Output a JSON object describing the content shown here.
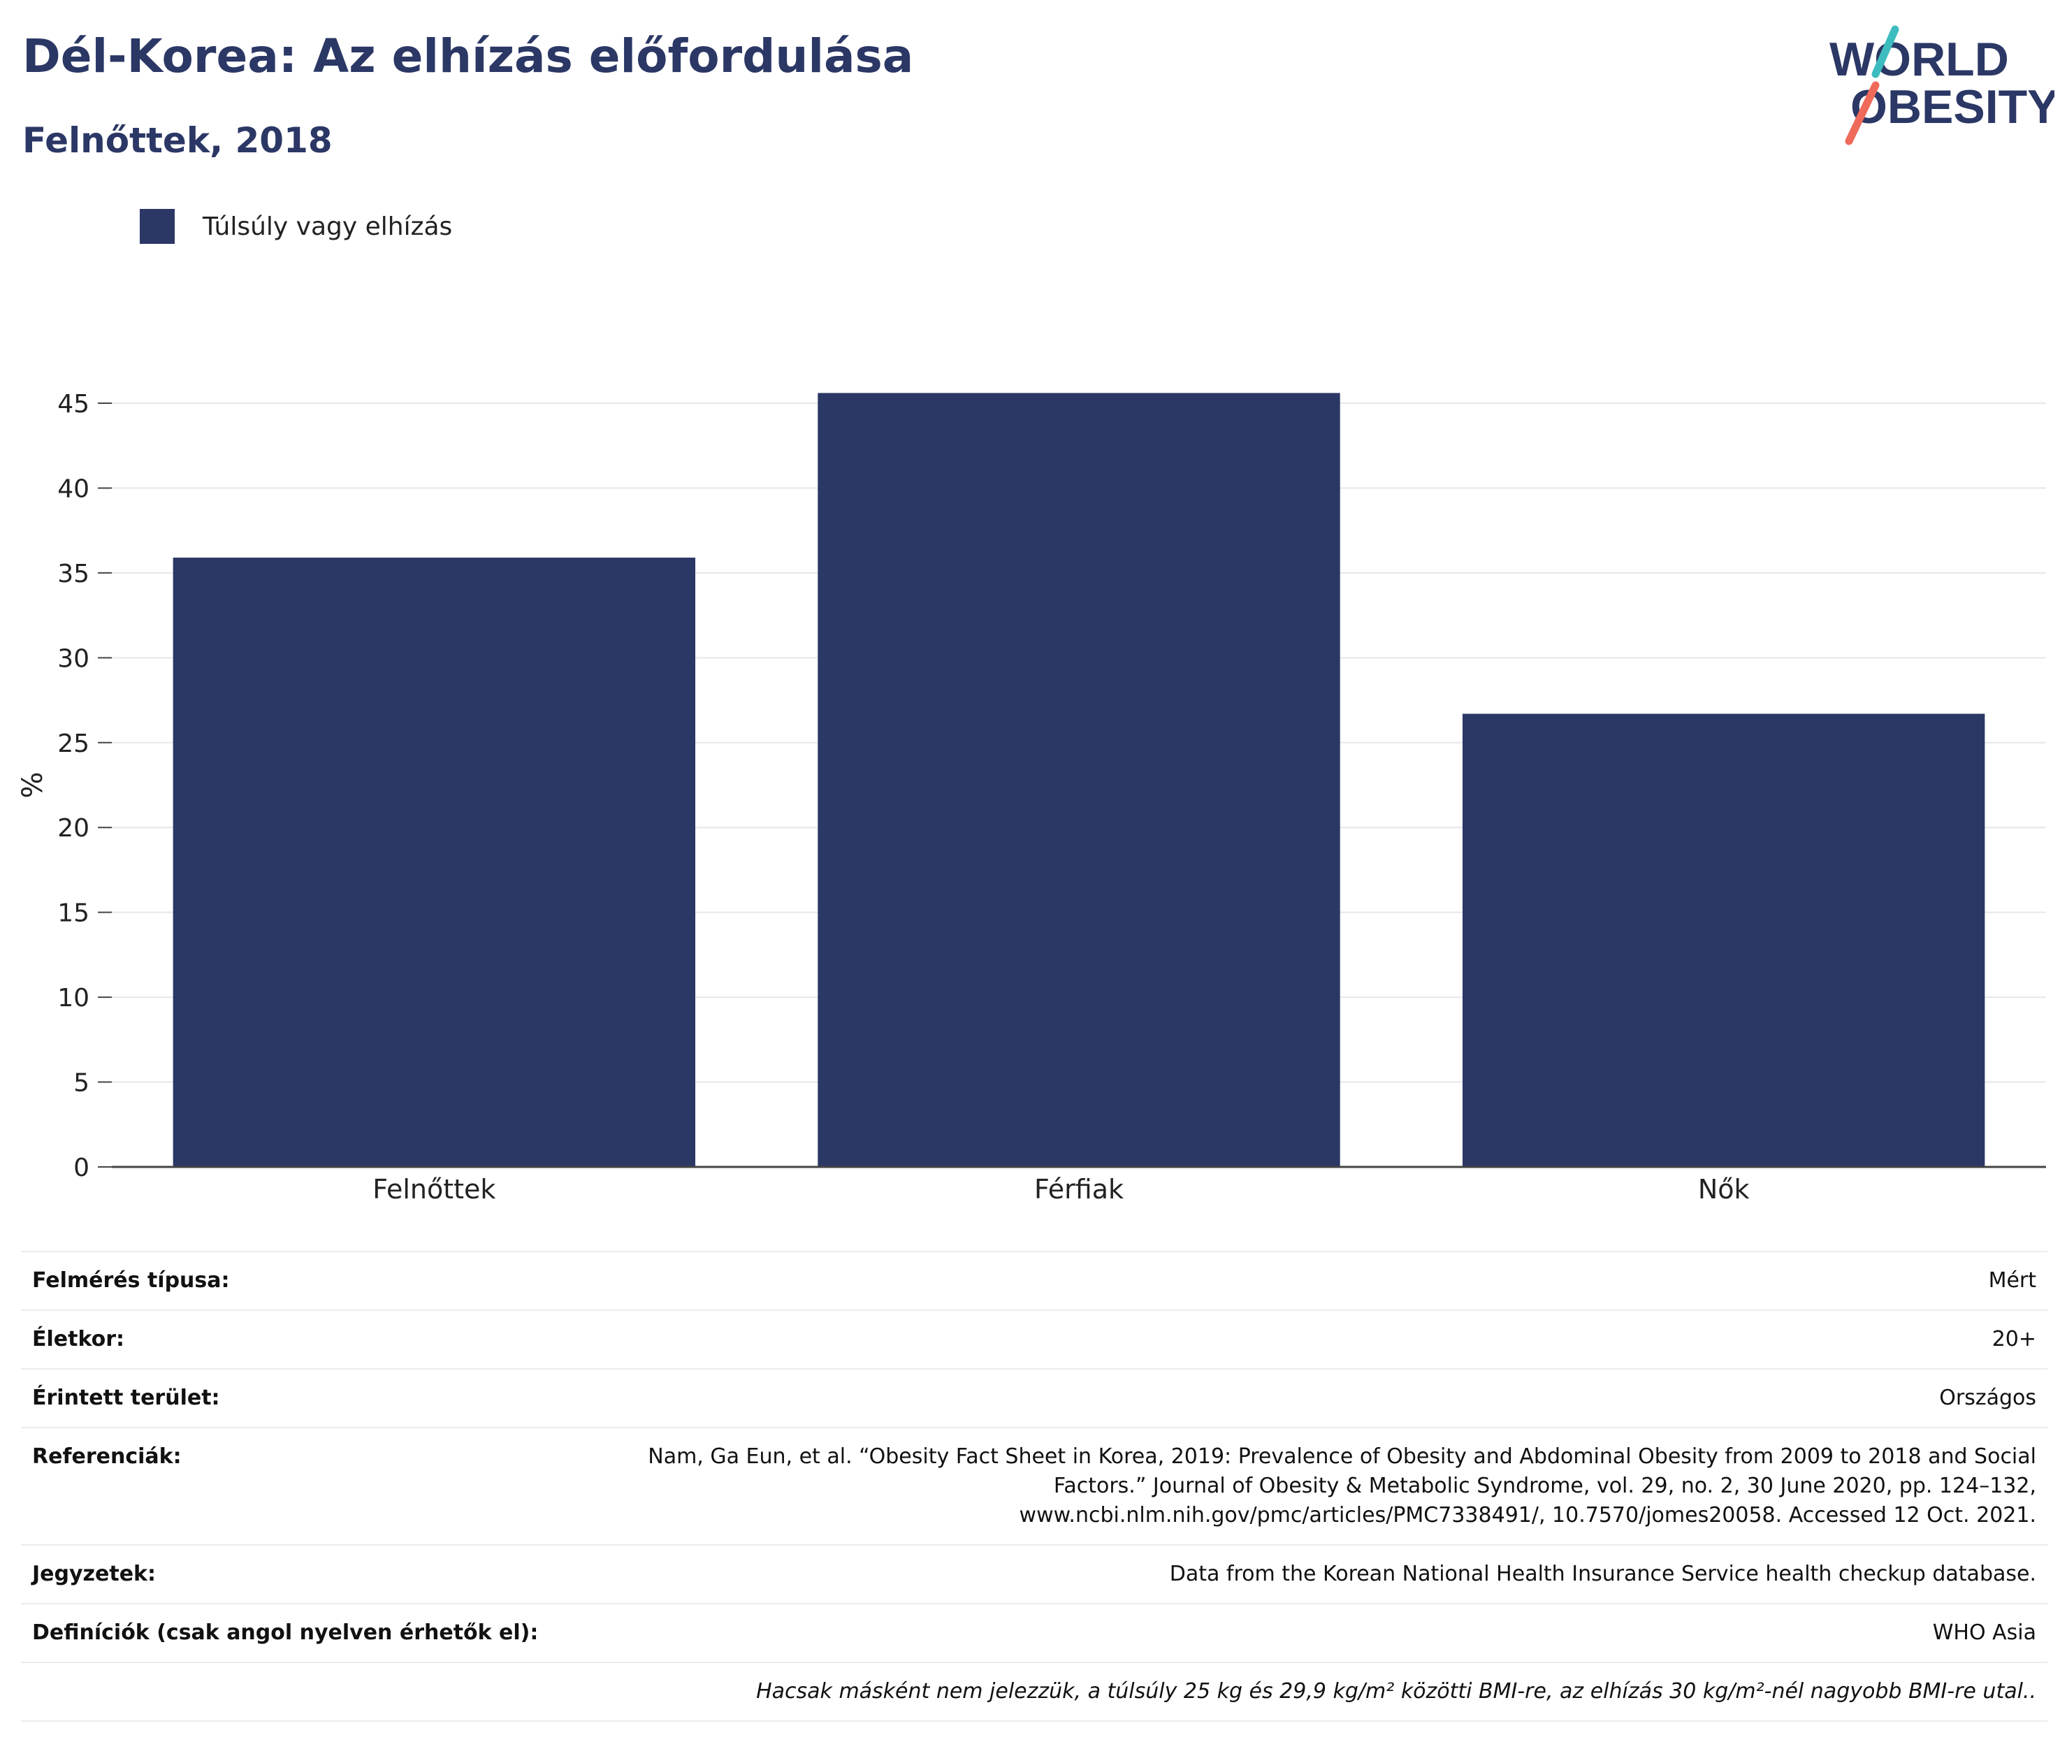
{
  "header": {
    "title": "Dél-Korea: Az elhízás előfordulása",
    "subtitle": "Felnőttek, 2018",
    "logo_line1": "WORLD",
    "logo_line2": "OBESITY"
  },
  "colors": {
    "bar": "#2b3765",
    "grid": "#e6e6ec",
    "axis": "#444444"
  },
  "chart_data": {
    "type": "bar",
    "categories": [
      "Felnőttek",
      "Férfiak",
      "Nők"
    ],
    "series": [
      {
        "name": "Túlsúly vagy elhízás",
        "values": [
          35.9,
          45.6,
          26.7
        ]
      }
    ],
    "ylabel": "%",
    "ylim": [
      0,
      45
    ],
    "yticks": [
      0,
      5,
      10,
      15,
      20,
      25,
      30,
      35,
      40,
      45
    ],
    "grid": true,
    "legend": "top-left"
  },
  "meta": {
    "rows": [
      {
        "label": "Felmérés típusa:",
        "value": "Mért"
      },
      {
        "label": "Életkor:",
        "value": "20+"
      },
      {
        "label": "Érintett terület:",
        "value": "Országos"
      },
      {
        "label": "Referenciák:",
        "value": "Nam, Ga Eun, et al. “Obesity Fact Sheet in Korea, 2019: Prevalence of Obesity and Abdominal Obesity from 2009 to 2018 and Social Factors.” Journal of Obesity & Metabolic Syndrome, vol. 29, no. 2, 30 June 2020, pp. 124–132, www.ncbi.nlm.nih.gov/pmc/articles/PMC7338491/, 10.7570/jomes20058. Accessed 12 Oct. 2021."
      },
      {
        "label": "Jegyzetek:",
        "value": "Data from the Korean National Health Insurance Service health checkup database."
      },
      {
        "label": "Definíciók (csak angol nyelven érhetők el):",
        "value": "WHO Asia"
      }
    ],
    "footnote": "Hacsak másként nem jelezzük, a túlsúly 25 kg és 29,9 kg/m² közötti BMI-re, az elhízás 30 kg/m²-nél nagyobb BMI-re utal.."
  }
}
